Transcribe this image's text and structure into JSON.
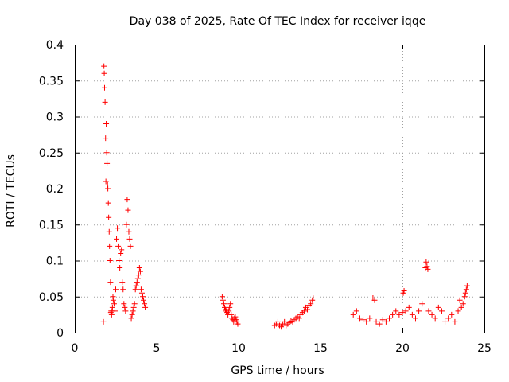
{
  "chart_data": {
    "type": "scatter",
    "title": "Day 038 of 2025, Rate Of TEC Index for receiver iqqe",
    "xlabel": "GPS time / hours",
    "ylabel": "ROTI / TECUs",
    "xlim": [
      0,
      25
    ],
    "ylim": [
      0,
      0.4
    ],
    "x_ticks": [
      0,
      5,
      10,
      15,
      20,
      25
    ],
    "x_tick_labels": [
      "0",
      "5",
      "10",
      "15",
      "20",
      "25"
    ],
    "y_ticks": [
      0,
      0.05,
      0.1,
      0.15,
      0.2,
      0.25,
      0.3,
      0.35,
      0.4
    ],
    "y_tick_labels": [
      "0",
      "0.05",
      "0.1",
      "0.15",
      "0.2",
      "0.25",
      "0.3",
      "0.35",
      "0.4"
    ],
    "grid": true,
    "marker": "plus",
    "color": "#ff0000",
    "series": [
      {
        "x": [
          1.75,
          1.78,
          1.8,
          1.82,
          1.85,
          1.88,
          1.9,
          1.92,
          1.95,
          1.97,
          2.0,
          2.02,
          2.05,
          2.07,
          2.1,
          2.12,
          2.15,
          2.18,
          2.2,
          2.22,
          2.25,
          2.28,
          2.3,
          2.33,
          2.35,
          2.4,
          2.45,
          2.5,
          2.55,
          2.6,
          2.65,
          2.7,
          2.75,
          2.8,
          2.85,
          2.9,
          2.95,
          3.0,
          3.05,
          3.1,
          3.15,
          3.2,
          3.25,
          3.3,
          3.35,
          3.4,
          3.45,
          3.5,
          3.55,
          3.6,
          3.65,
          3.7,
          3.75,
          3.8,
          3.85,
          3.9,
          3.95,
          4.0,
          4.05,
          4.1,
          4.15,
          4.2,
          4.25,
          4.3
        ],
        "y": [
          0.015,
          0.37,
          0.36,
          0.34,
          0.32,
          0.27,
          0.21,
          0.29,
          0.25,
          0.235,
          0.205,
          0.2,
          0.18,
          0.16,
          0.14,
          0.12,
          0.1,
          0.07,
          0.028,
          0.03,
          0.025,
          0.03,
          0.035,
          0.05,
          0.045,
          0.04,
          0.03,
          0.06,
          0.13,
          0.145,
          0.12,
          0.1,
          0.09,
          0.11,
          0.115,
          0.07,
          0.06,
          0.04,
          0.035,
          0.03,
          0.15,
          0.185,
          0.17,
          0.14,
          0.13,
          0.12,
          0.02,
          0.025,
          0.03,
          0.035,
          0.04,
          0.06,
          0.065,
          0.07,
          0.075,
          0.08,
          0.09,
          0.085,
          0.06,
          0.055,
          0.05,
          0.045,
          0.04,
          0.035
        ]
      },
      {
        "x": [
          9.0,
          9.05,
          9.1,
          9.15,
          9.2,
          9.25,
          9.3,
          9.35,
          9.4,
          9.45,
          9.5,
          9.55,
          9.6,
          9.65,
          9.7,
          9.75,
          9.8,
          9.85,
          9.9,
          9.95
        ],
        "y": [
          0.05,
          0.045,
          0.04,
          0.035,
          0.032,
          0.03,
          0.028,
          0.025,
          0.03,
          0.035,
          0.04,
          0.025,
          0.02,
          0.018,
          0.015,
          0.02,
          0.022,
          0.018,
          0.015,
          0.012
        ]
      },
      {
        "x": [
          12.2,
          12.3,
          12.4,
          12.5,
          12.6,
          12.7,
          12.8,
          12.9,
          13.0,
          13.1,
          13.2,
          13.3,
          13.4,
          13.5,
          13.6,
          13.7,
          13.8,
          13.9,
          14.0,
          14.1,
          14.2,
          14.3,
          14.4,
          14.5,
          14.55
        ],
        "y": [
          0.01,
          0.012,
          0.015,
          0.01,
          0.008,
          0.012,
          0.015,
          0.01,
          0.012,
          0.014,
          0.016,
          0.015,
          0.018,
          0.02,
          0.022,
          0.02,
          0.025,
          0.028,
          0.03,
          0.035,
          0.032,
          0.038,
          0.04,
          0.045,
          0.048
        ]
      },
      {
        "x": [
          17.0,
          17.2,
          17.4,
          17.6,
          17.8,
          18.0,
          18.2,
          18.3,
          18.4,
          18.6,
          18.8,
          19.0,
          19.2,
          19.4,
          19.6,
          19.8,
          20.0,
          20.05,
          20.1,
          20.2,
          20.4,
          20.6,
          20.8,
          21.0,
          21.2,
          21.4,
          21.45,
          21.5,
          21.55,
          21.6,
          21.8,
          22.0,
          22.2,
          22.4,
          22.6,
          22.8,
          23.0,
          23.2,
          23.4,
          23.5,
          23.6,
          23.7,
          23.8,
          23.85,
          23.9,
          23.95
        ],
        "y": [
          0.025,
          0.03,
          0.02,
          0.018,
          0.015,
          0.02,
          0.048,
          0.045,
          0.015,
          0.012,
          0.018,
          0.015,
          0.02,
          0.025,
          0.03,
          0.025,
          0.028,
          0.055,
          0.058,
          0.03,
          0.035,
          0.025,
          0.02,
          0.03,
          0.04,
          0.09,
          0.098,
          0.092,
          0.088,
          0.03,
          0.025,
          0.02,
          0.035,
          0.03,
          0.015,
          0.02,
          0.025,
          0.015,
          0.03,
          0.045,
          0.035,
          0.04,
          0.05,
          0.055,
          0.06,
          0.065
        ]
      }
    ]
  }
}
